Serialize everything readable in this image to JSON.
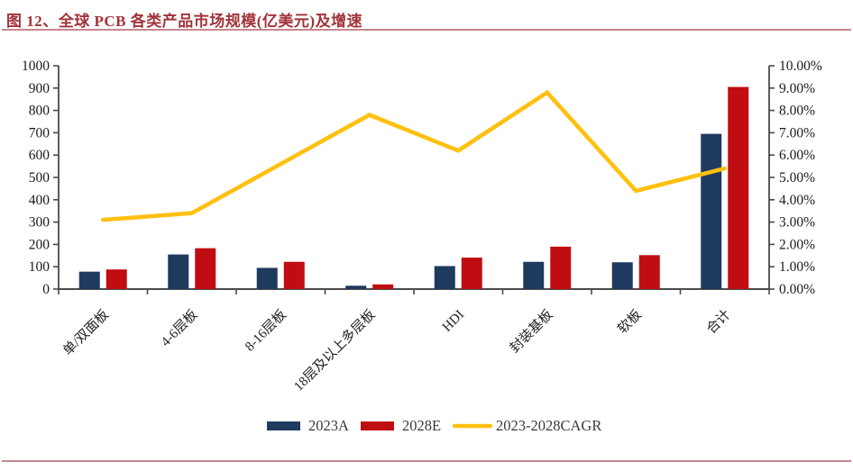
{
  "page": {
    "title": "图 12、全球 PCB 各类产品市场规模(亿美元)及增速",
    "title_color": "#A2333A",
    "rule_color": "#C5868E"
  },
  "chart_data": {
    "type": "bar",
    "subtype": "grouped-bars-with-line-dual-axis",
    "categories": [
      "单/双面板",
      "4-6层板",
      "8-16层板",
      "18层及以上多层板",
      "HDI",
      "封装基板",
      "软板",
      "合计"
    ],
    "series": [
      {
        "name": "2023A",
        "type": "bar",
        "axis": "left",
        "color": "#1F3A5F",
        "values": [
          78,
          155,
          95,
          15,
          103,
          122,
          120,
          695
        ]
      },
      {
        "name": "2028E",
        "type": "bar",
        "axis": "left",
        "color": "#C00D12",
        "values": [
          88,
          183,
          122,
          21,
          141,
          190,
          152,
          905
        ]
      },
      {
        "name": "2023-2028CAGR",
        "type": "line",
        "axis": "right",
        "color": "#FFC010",
        "values": [
          3.1,
          3.4,
          5.6,
          7.8,
          6.2,
          8.8,
          4.4,
          5.4
        ]
      }
    ],
    "left_axis": {
      "min": 0,
      "max": 1000,
      "step": 100,
      "tick_labels": [
        "0",
        "100",
        "200",
        "300",
        "400",
        "500",
        "600",
        "700",
        "800",
        "900",
        "1000"
      ]
    },
    "right_axis": {
      "min": 0,
      "max": 10,
      "step": 1,
      "tick_labels": [
        "0.00%",
        "1.00%",
        "2.00%",
        "3.00%",
        "4.00%",
        "5.00%",
        "6.00%",
        "7.00%",
        "8.00%",
        "9.00%",
        "10.00%"
      ]
    },
    "legend": [
      {
        "label": "2023A",
        "swatch": "rect",
        "color": "#1F3A5F"
      },
      {
        "label": "2028E",
        "swatch": "rect",
        "color": "#C00D12"
      },
      {
        "label": "2023-2028CAGR",
        "swatch": "line",
        "color": "#FFC010"
      }
    ],
    "grid": false,
    "legend_position": "bottom-center",
    "axis_color": "#4A4A4A",
    "tick_text_color": "#1a1a1a"
  }
}
